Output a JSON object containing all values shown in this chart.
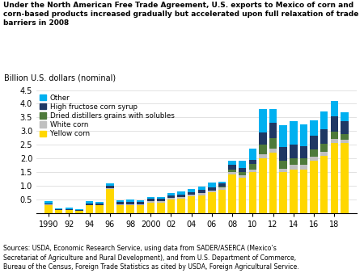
{
  "years": [
    1990,
    1991,
    1992,
    1993,
    1994,
    1995,
    1996,
    1997,
    1998,
    1999,
    2000,
    2001,
    2002,
    2003,
    2004,
    2005,
    2006,
    2007,
    2008,
    2009,
    2010,
    2011,
    2012,
    2013,
    2014,
    2015,
    2016,
    2017,
    2018,
    2019
  ],
  "yellow_corn": [
    0.3,
    0.1,
    0.1,
    0.08,
    0.28,
    0.28,
    0.88,
    0.28,
    0.28,
    0.28,
    0.38,
    0.38,
    0.48,
    0.52,
    0.6,
    0.65,
    0.75,
    0.85,
    1.4,
    1.3,
    1.5,
    2.0,
    2.2,
    1.5,
    1.6,
    1.6,
    1.9,
    2.1,
    2.55,
    2.55
  ],
  "white_corn": [
    0.02,
    0.01,
    0.01,
    0.01,
    0.02,
    0.02,
    0.04,
    0.04,
    0.04,
    0.04,
    0.05,
    0.05,
    0.06,
    0.06,
    0.07,
    0.07,
    0.08,
    0.09,
    0.1,
    0.08,
    0.1,
    0.15,
    0.15,
    0.12,
    0.15,
    0.15,
    0.15,
    0.15,
    0.15,
    0.12
  ],
  "ddgs": [
    0.0,
    0.0,
    0.0,
    0.0,
    0.0,
    0.0,
    0.0,
    0.0,
    0.0,
    0.0,
    0.0,
    0.0,
    0.0,
    0.0,
    0.0,
    0.0,
    0.0,
    0.02,
    0.1,
    0.12,
    0.2,
    0.35,
    0.4,
    0.3,
    0.25,
    0.25,
    0.28,
    0.28,
    0.28,
    0.22
  ],
  "hfcs": [
    0.03,
    0.02,
    0.02,
    0.02,
    0.05,
    0.05,
    0.07,
    0.07,
    0.08,
    0.08,
    0.08,
    0.08,
    0.1,
    0.1,
    0.1,
    0.12,
    0.12,
    0.12,
    0.15,
    0.15,
    0.15,
    0.45,
    0.55,
    0.5,
    0.5,
    0.45,
    0.5,
    0.55,
    0.55,
    0.48
  ],
  "other": [
    0.08,
    0.04,
    0.06,
    0.04,
    0.08,
    0.06,
    0.08,
    0.08,
    0.08,
    0.06,
    0.06,
    0.08,
    0.1,
    0.12,
    0.12,
    0.14,
    0.15,
    0.05,
    0.15,
    0.25,
    0.4,
    0.85,
    0.5,
    0.8,
    0.85,
    0.8,
    0.55,
    0.65,
    0.58,
    0.33
  ],
  "colors": {
    "yellow_corn": "#FFD700",
    "white_corn": "#C0C0C0",
    "ddgs": "#4E7A3A",
    "hfcs": "#1F3864",
    "other": "#00B0F0"
  },
  "labels": {
    "yellow_corn": "Yellow corn",
    "white_corn": "White corn",
    "ddgs": "Dried distillers grains with solubles",
    "hfcs": "High fructose corn syrup",
    "other": "Other"
  },
  "title_line1": "Under the North American Free Trade Agreement, U.S. exports to Mexico of corn and",
  "title_line2": "corn-based products increased gradually but accelerated upon full relaxation of trade",
  "title_line3": "barriers in 2008",
  "ylabel": "Billion U.S. dollars (nominal)",
  "ylim": [
    0,
    4.5
  ],
  "yticks": [
    0.0,
    0.5,
    1.0,
    1.5,
    2.0,
    2.5,
    3.0,
    3.5,
    4.0,
    4.5
  ],
  "xtick_labels": [
    "1990",
    "92",
    "94",
    "96",
    "98",
    "2000",
    "02",
    "04",
    "06",
    "08",
    "10",
    "12",
    "14",
    "16",
    "18"
  ],
  "xtick_years": [
    1990,
    1992,
    1994,
    1996,
    1998,
    2000,
    2002,
    2004,
    2006,
    2008,
    2010,
    2012,
    2014,
    2016,
    2018
  ],
  "source_text": "Sources: USDA, Economic Research Service, using data from SADER/ASERCA (Mexico’s\nSecretariat of Agriculture and Rural Development), and from U.S. Department of Commerce,\nBureau of the Census, Foreign Trade Statistics as cited by USDA, Foreign Agricultural Service."
}
